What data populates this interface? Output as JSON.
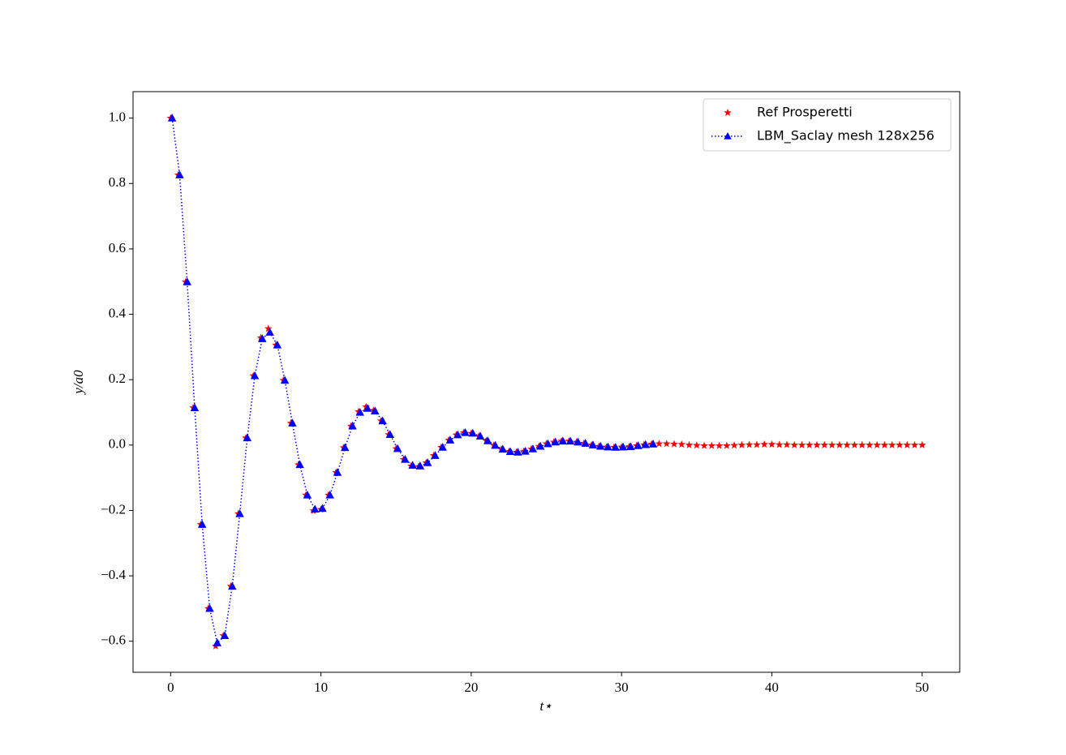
{
  "chart_data": {
    "type": "scatter",
    "x_label": "t⋆",
    "y_label": "y/a0",
    "xlim": [
      -2.5,
      52.5
    ],
    "ylim": [
      -0.695,
      1.081
    ],
    "xticks": [
      0,
      10,
      20,
      30,
      40,
      50
    ],
    "yticks": [
      {
        "value": -0.6,
        "label": "−0.6"
      },
      {
        "value": -0.4,
        "label": "−0.4"
      },
      {
        "value": -0.2,
        "label": "−0.2"
      },
      {
        "value": 0,
        "label": "0.0"
      },
      0.2,
      0.4,
      0.6,
      0.8,
      {
        "value": 1,
        "label": "1.0"
      }
    ],
    "grid": false,
    "legend": "upper right",
    "series": [
      {
        "name": "Ref Prosperetti",
        "color": "#ff0000",
        "type": "scatter",
        "marker": "star",
        "x": [
          0,
          0.5,
          1,
          1.5,
          2,
          2.5,
          3,
          3.5,
          4,
          4.5,
          5,
          5.5,
          6,
          6.5,
          7,
          7.5,
          8,
          8.5,
          9,
          9.5,
          10,
          10.5,
          11,
          11.5,
          12,
          12.5,
          13,
          13.5,
          14,
          14.5,
          15,
          15.5,
          16,
          16.5,
          17,
          17.5,
          18,
          18.5,
          19,
          19.5,
          20,
          20.5,
          21,
          21.5,
          22,
          22.5,
          23,
          23.5,
          24,
          24.5,
          25,
          25.5,
          26,
          26.5,
          27,
          27.5,
          28,
          28.5,
          29,
          29.5,
          30,
          30.5,
          31,
          31.5,
          32,
          32.5,
          33,
          33.5,
          34,
          34.5,
          35,
          35.5,
          36,
          36.5,
          37,
          37.5,
          38,
          38.5,
          39,
          39.5,
          40,
          40.5,
          41,
          41.5,
          42,
          42.5,
          43,
          43.5,
          44,
          44.5,
          45,
          45.5,
          46,
          46.5,
          47,
          47.5,
          48,
          48.5,
          49,
          49.5,
          50
        ],
        "values": [
          1.0,
          0.826,
          0.499,
          0.114,
          -0.243,
          -0.5,
          -0.615,
          -0.583,
          -0.432,
          -0.21,
          0.022,
          0.212,
          0.328,
          0.356,
          0.306,
          0.198,
          0.067,
          -0.06,
          -0.153,
          -0.201,
          -0.197,
          -0.153,
          -0.084,
          -0.008,
          0.058,
          0.102,
          0.117,
          0.106,
          0.074,
          0.032,
          -0.011,
          -0.044,
          -0.064,
          -0.066,
          -0.054,
          -0.032,
          -0.007,
          0.015,
          0.031,
          0.038,
          0.036,
          0.027,
          0.013,
          -0.001,
          -0.013,
          -0.02,
          -0.022,
          -0.019,
          -0.012,
          -0.004,
          0.004,
          0.009,
          0.012,
          0.012,
          0.009,
          0.005,
          0.0,
          -0.004,
          -0.006,
          -0.007,
          -0.006,
          -0.005,
          -0.002,
          0.001,
          0.003,
          0.004,
          0.004,
          0.003,
          0.002,
          0.0,
          -0.001,
          -0.002,
          -0.002,
          -0.002,
          -0.002,
          -0.001,
          0.0,
          0.001,
          0.001,
          0.002,
          0.002,
          0.001,
          0.001,
          0.0,
          0,
          0,
          0,
          0,
          0,
          0,
          0,
          0,
          0,
          0,
          0,
          0,
          0,
          0,
          0,
          0,
          0
        ]
      },
      {
        "name": "LBM_Saclay mesh 128x256",
        "color": "#0000ff",
        "type": "line",
        "marker": "triangle",
        "linestyle": "dotted",
        "x": [
          0.1,
          0.6,
          1.1,
          1.6,
          2.1,
          2.6,
          3.1,
          3.6,
          4.1,
          4.6,
          5.1,
          5.6,
          6.1,
          6.6,
          7.1,
          7.6,
          8.1,
          8.6,
          9.1,
          9.6,
          10.1,
          10.6,
          11.1,
          11.6,
          12.1,
          12.6,
          13.1,
          13.6,
          14.1,
          14.6,
          15.1,
          15.6,
          16.1,
          16.6,
          17.1,
          17.6,
          18.1,
          18.6,
          19.1,
          19.6,
          20.1,
          20.6,
          21.1,
          21.6,
          22.1,
          22.6,
          23.1,
          23.6,
          24.1,
          24.6,
          25.1,
          25.6,
          26.1,
          26.6,
          27.1,
          27.6,
          28.1,
          28.6,
          29.1,
          29.6,
          30.1,
          30.6,
          31.1,
          31.6,
          32.1
        ],
        "values": [
          1.0,
          0.826,
          0.499,
          0.114,
          -0.243,
          -0.5,
          -0.605,
          -0.583,
          -0.432,
          -0.21,
          0.022,
          0.212,
          0.325,
          0.345,
          0.306,
          0.198,
          0.067,
          -0.06,
          -0.153,
          -0.196,
          -0.194,
          -0.153,
          -0.084,
          -0.008,
          0.058,
          0.1,
          0.112,
          0.104,
          0.074,
          0.032,
          -0.011,
          -0.044,
          -0.062,
          -0.064,
          -0.054,
          -0.032,
          -0.007,
          0.015,
          0.031,
          0.038,
          0.036,
          0.027,
          0.013,
          -0.001,
          -0.013,
          -0.02,
          -0.022,
          -0.019,
          -0.012,
          -0.004,
          0.004,
          0.009,
          0.012,
          0.012,
          0.009,
          0.005,
          0.0,
          -0.004,
          -0.006,
          -0.007,
          -0.006,
          -0.005,
          -0.002,
          0.001,
          0.003
        ]
      }
    ]
  }
}
